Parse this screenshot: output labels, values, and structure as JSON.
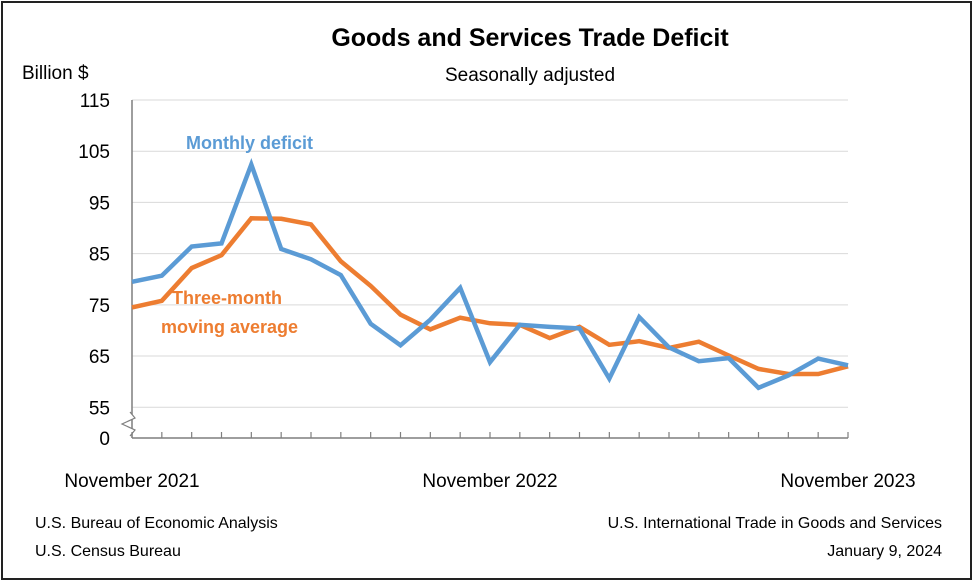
{
  "chart_data": {
    "type": "line",
    "title": "Goods and Services Trade Deficit",
    "subtitle": "Seasonally adjusted",
    "ylabel": "Billion $",
    "ylim": [
      49,
      115
    ],
    "y_ticks": [
      "115",
      "105",
      "95",
      "85",
      "75",
      "65",
      "55",
      "0"
    ],
    "y_tick_values": [
      115,
      105,
      95,
      85,
      75,
      65,
      55,
      0
    ],
    "y_axis_break": true,
    "grid": true,
    "x": [
      "Nov 2021",
      "Dec 2021",
      "Jan 2022",
      "Feb 2022",
      "Mar 2022",
      "Apr 2022",
      "May 2022",
      "Jun 2022",
      "Jul 2022",
      "Aug 2022",
      "Sep 2022",
      "Oct 2022",
      "Nov 2022",
      "Dec 2022",
      "Jan 2023",
      "Feb 2023",
      "Mar 2023",
      "Apr 2023",
      "May 2023",
      "Jun 2023",
      "Jul 2023",
      "Aug 2023",
      "Sep 2023",
      "Oct 2023",
      "Nov 2023"
    ],
    "x_tick_labels": [
      {
        "label": "November 2021",
        "index": 0
      },
      {
        "label": "November 2022",
        "index": 12
      },
      {
        "label": "November 2023",
        "index": 24
      }
    ],
    "series": [
      {
        "name": "Monthly deficit",
        "color": "#5b9bd5",
        "values": [
          79.5,
          80.7,
          86.4,
          87.0,
          102.4,
          85.9,
          83.9,
          80.8,
          71.3,
          67.1,
          72.1,
          78.3,
          63.8,
          71.1,
          70.7,
          70.4,
          60.6,
          72.6,
          66.7,
          64.0,
          64.6,
          58.8,
          61.2,
          64.5,
          63.2
        ]
      },
      {
        "name": "Three-month moving average",
        "label_lines": [
          "Three-month",
          "moving average"
        ],
        "color": "#ed7d31",
        "values": [
          74.5,
          75.8,
          82.2,
          84.7,
          91.9,
          91.8,
          90.7,
          83.5,
          78.7,
          73.1,
          70.2,
          72.5,
          71.4,
          71.1,
          68.5,
          70.7,
          67.2,
          67.9,
          66.6,
          67.8,
          65.1,
          62.5,
          61.5,
          61.5,
          63.0
        ]
      }
    ]
  },
  "footer": {
    "source_line1": "U.S. Bureau of Economic Analysis",
    "source_line2": "U.S. Census Bureau",
    "release_title": "U.S. International Trade in Goods and Services",
    "release_date": "January 9, 2024"
  }
}
